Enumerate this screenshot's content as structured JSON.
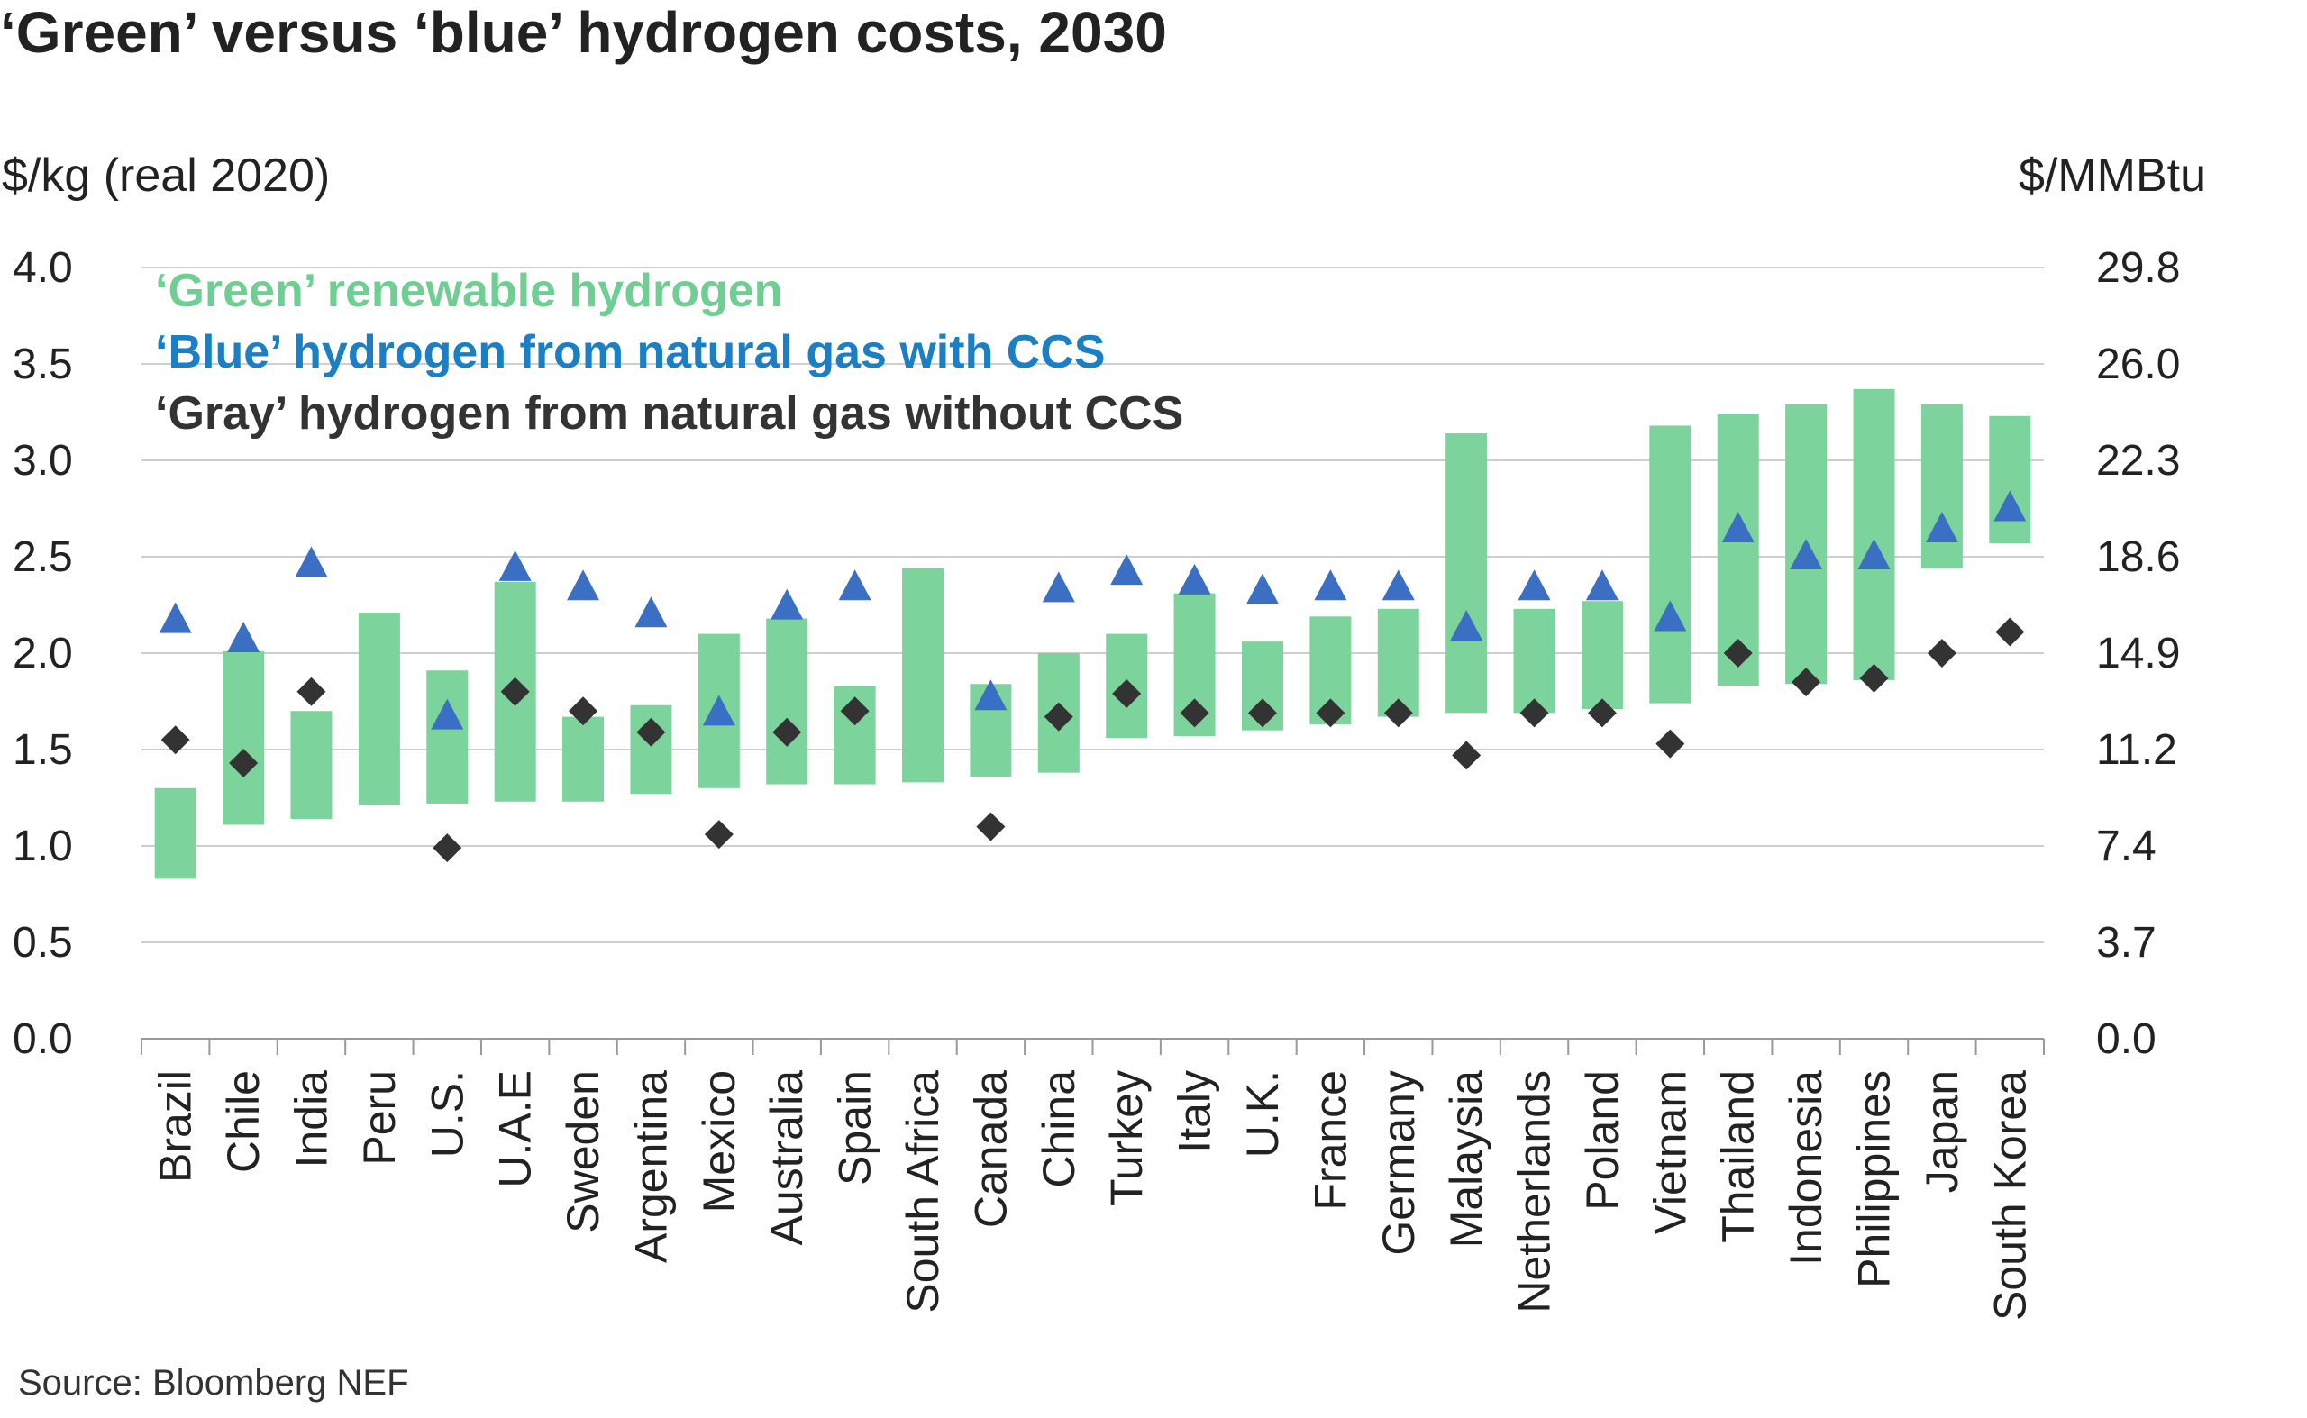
{
  "chart_data": {
    "type": "range-bar-with-markers",
    "title": "‘Green’ versus ‘blue’ hydrogen costs, 2030",
    "ylabel_left": "$/kg (real 2020)",
    "ylabel_right": "$/MMBtu",
    "ylim": [
      0,
      4
    ],
    "yticks_left": [
      "4.0",
      "3.5",
      "3.0",
      "2.5",
      "2.0",
      "1.5",
      "1.0",
      "0.5",
      "0.0"
    ],
    "yticks_right": [
      "29.8",
      "26.0",
      "22.3",
      "18.6",
      "14.9",
      "11.2",
      "7.4",
      "3.7",
      "0.0"
    ],
    "grid": true,
    "legend_placement": "top-left",
    "legend": [
      {
        "label": "‘Green’ renewable hydrogen",
        "color": "#6fcf93"
      },
      {
        "label": "‘Blue’ hydrogen from natural gas with CCS",
        "color": "#1b7fc6"
      },
      {
        "label": "‘Gray’ hydrogen from natural gas without CCS",
        "color": "#333333"
      }
    ],
    "colors": {
      "green_bar": "#7cd39c",
      "blue_marker": "#3b6fc4",
      "gray_marker": "#333333"
    },
    "categories": [
      "Brazil",
      "Chile",
      "India",
      "Peru",
      "U.S.",
      "U.A.E",
      "Sweden",
      "Argentina",
      "Mexico",
      "Australia",
      "Spain",
      "South Africa",
      "Canada",
      "China",
      "Turkey",
      "Italy",
      "U.K.",
      "France",
      "Germany",
      "Malaysia",
      "Netherlands",
      "Poland",
      "Vietnam",
      "Thailand",
      "Indonesia",
      "Philippines",
      "Japan",
      "South Korea"
    ],
    "green_low": [
      0.83,
      1.11,
      1.14,
      1.21,
      1.22,
      1.23,
      1.23,
      1.27,
      1.3,
      1.32,
      1.32,
      1.33,
      1.36,
      1.38,
      1.56,
      1.57,
      1.6,
      1.63,
      1.67,
      1.69,
      1.69,
      1.71,
      1.74,
      1.83,
      1.84,
      1.86,
      2.44,
      2.57
    ],
    "green_high": [
      1.3,
      2.01,
      1.7,
      2.21,
      1.91,
      2.37,
      1.67,
      1.73,
      2.1,
      2.18,
      1.83,
      2.44,
      1.84,
      2.0,
      2.1,
      2.31,
      2.06,
      2.19,
      2.23,
      3.14,
      2.23,
      2.27,
      3.18,
      3.24,
      3.29,
      3.37,
      3.29,
      3.23
    ],
    "blue": [
      2.17,
      2.07,
      2.46,
      null,
      1.67,
      2.44,
      2.34,
      2.2,
      1.69,
      2.24,
      2.34,
      null,
      1.77,
      2.33,
      2.42,
      2.37,
      2.32,
      2.34,
      2.34,
      2.13,
      2.34,
      2.34,
      2.18,
      2.64,
      2.5,
      2.5,
      2.64,
      2.75
    ],
    "gray": [
      1.55,
      1.43,
      1.8,
      null,
      0.99,
      1.8,
      1.7,
      1.59,
      1.06,
      1.59,
      1.7,
      null,
      1.1,
      1.67,
      1.79,
      1.69,
      1.69,
      1.69,
      1.69,
      1.47,
      1.69,
      1.69,
      1.53,
      2.0,
      1.85,
      1.87,
      2.0,
      2.11
    ]
  },
  "source": "Source: Bloomberg NEF"
}
